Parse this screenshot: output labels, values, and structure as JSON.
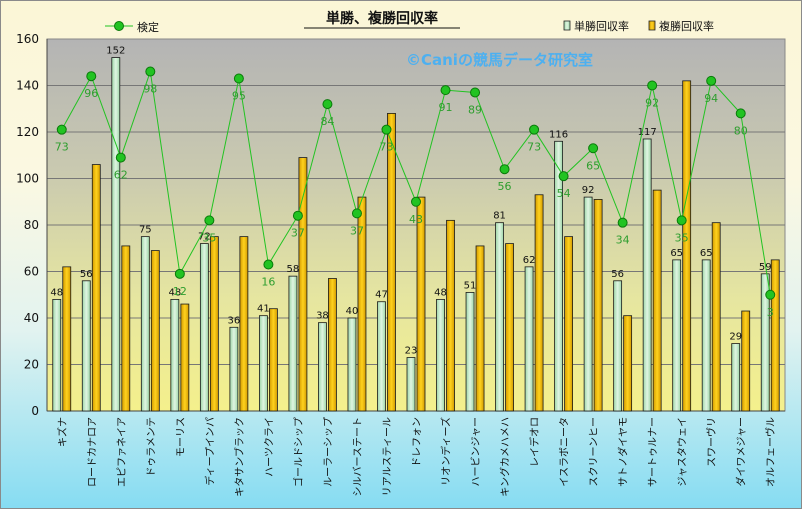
{
  "chart_data": {
    "type": "bar",
    "title": "単勝、複勝回収率",
    "watermark": "©Caniの競馬データ研究室",
    "ylim": [
      0,
      160
    ],
    "yticks": [
      0,
      20,
      40,
      60,
      80,
      100,
      120,
      140,
      160
    ],
    "grid": true,
    "legend_position": "top",
    "categories": [
      "キズナ",
      "ロードカナロア",
      "エピファネイア",
      "ドゥラメンテ",
      "モーリス",
      "ディープインパ",
      "キタサンブラック",
      "ハーツクライ",
      "ゴールドシップ",
      "ルーラーシップ",
      "シルバーステート",
      "リアルスティール",
      "ドレフォン",
      "リオンディーズ",
      "ハービンジャー",
      "キングカメハメハ",
      "レイデオロ",
      "イスラボニータ",
      "スクリーンヒー",
      "サトノダイヤモ",
      "サートゥルナー",
      "ジャスタウェイ",
      "スワーヴリ",
      "ダイワメジャー",
      "オルフェーヴル"
    ],
    "series": [
      {
        "name": "単勝回収率",
        "type": "bar",
        "color": "#bfe6c4",
        "values": [
          48,
          56,
          152,
          75,
          48,
          72,
          36,
          41,
          58,
          38,
          40,
          47,
          23,
          48,
          51,
          81,
          62,
          116,
          92,
          56,
          117,
          65,
          65,
          29,
          59
        ]
      },
      {
        "name": "複勝回収率",
        "type": "bar",
        "color": "#f0b800",
        "values": [
          62,
          106,
          71,
          69,
          46,
          75,
          75,
          44,
          109,
          57,
          92,
          128,
          92,
          82,
          71,
          72,
          93,
          75,
          91,
          41,
          95,
          142,
          81,
          43,
          65
        ]
      },
      {
        "name": "検定",
        "type": "line",
        "color": "#22c322",
        "values": [
          121,
          144,
          109,
          146,
          59,
          82,
          143,
          63,
          84,
          132,
          85,
          121,
          90,
          138,
          137,
          104,
          121,
          101,
          113,
          81,
          140,
          82,
          142,
          128,
          50
        ],
        "labels": [
          73,
          96,
          62,
          98,
          12,
          35,
          95,
          16,
          37,
          84,
          37,
          73,
          43,
          91,
          89,
          56,
          73,
          54,
          65,
          34,
          92,
          35,
          94,
          80,
          3
        ]
      }
    ]
  }
}
